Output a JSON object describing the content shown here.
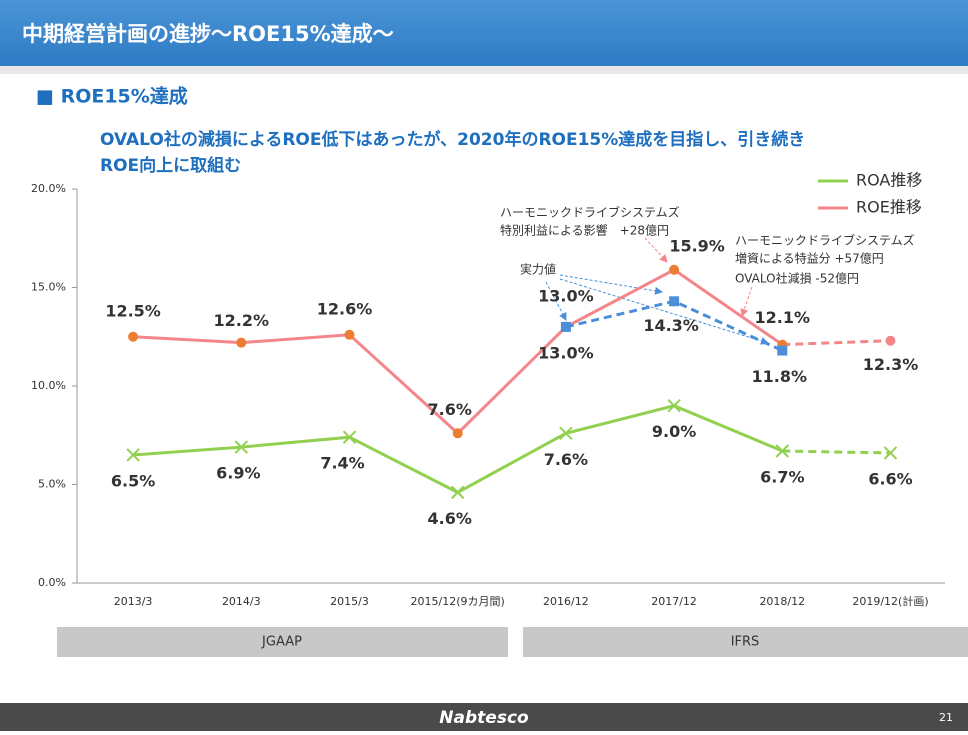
{
  "header": {
    "title": "中期経営計画の進捗～ROE15%達成～"
  },
  "section": {
    "title": "■ ROE15%達成",
    "lines": [
      "OVALO社の減損によるROE低下はあったが、2020年のROE15%達成を目指し、引き続き",
      "ROE向上に取組む"
    ]
  },
  "chart_data": {
    "type": "line",
    "categories": [
      "2013/3",
      "2014/3",
      "2015/3",
      "2015/12(9カ月間)",
      "2016/12",
      "2017/12",
      "2018/12",
      "2019/12(計画)"
    ],
    "series": [
      {
        "name": "ROA推移",
        "color": "#92d050",
        "marker": "x",
        "values": [
          6.5,
          6.9,
          7.4,
          4.6,
          7.6,
          9.0,
          6.7,
          6.6
        ],
        "value_labels": [
          "6.5%",
          "6.9%",
          "7.4%",
          "4.6%",
          "7.6%",
          "9.0%",
          "6.7%",
          "6.6%"
        ],
        "dashed_last_segment": true
      },
      {
        "name": "ROE推移",
        "color": "#f4868a",
        "marker_color": "#ed7d31",
        "marker": "circle",
        "values": [
          12.5,
          12.2,
          12.6,
          7.6,
          13.0,
          15.9,
          12.1,
          12.3
        ],
        "value_labels": [
          "12.5%",
          "12.2%",
          "12.6%",
          "7.6%",
          "13.0%",
          "15.9%",
          "12.1%",
          "12.3%"
        ],
        "dashed_last_segment": true
      },
      {
        "name": "実力値",
        "color": "#4a8fd8",
        "marker": "square",
        "dashed": true,
        "values": [
          null,
          null,
          null,
          null,
          13.0,
          14.3,
          11.8,
          null
        ],
        "value_labels": [
          null,
          null,
          null,
          null,
          "13.0%",
          "14.3%",
          "11.8%",
          null
        ]
      }
    ],
    "ylim": [
      0,
      20
    ],
    "yticks": [
      {
        "value": 0,
        "label": "0.0%"
      },
      {
        "value": 5,
        "label": "5.0%"
      },
      {
        "value": 10,
        "label": "10.0%"
      },
      {
        "value": 15,
        "label": "15.0%"
      },
      {
        "value": 20,
        "label": "20.0%"
      }
    ],
    "legend": "top-right",
    "annotations": [
      [
        "ハーモニックドライブシステムズ",
        "特別利益による影響　+28億円"
      ],
      [
        "ハーモニックドライブシステムズ",
        "増資による特益分 +57億円",
        "OVALO社減損 -52億円"
      ]
    ],
    "groups": [
      "JGAAP",
      "IFRS"
    ]
  },
  "footer": {
    "brand": "Nabtesco",
    "page": "21"
  }
}
